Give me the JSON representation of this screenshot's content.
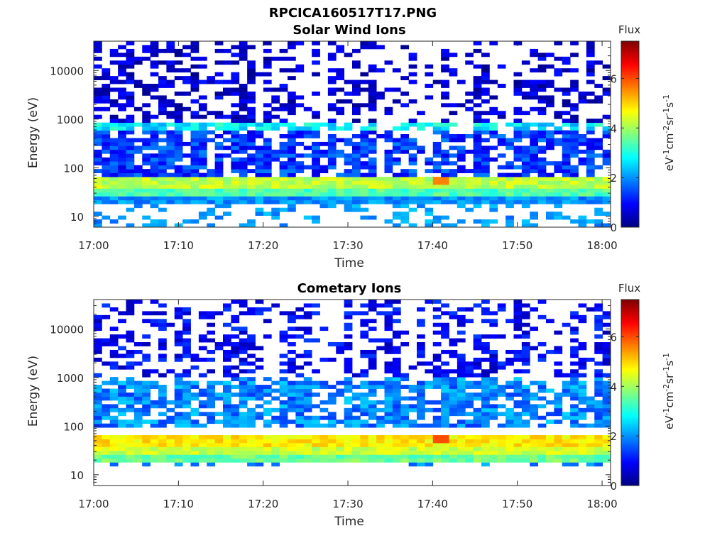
{
  "figure": {
    "title": "RPCICA160517T17.PNG"
  },
  "chart_data": [
    {
      "type": "heatmap",
      "title": "Solar Wind Ions",
      "xlabel": "Time",
      "ylabel": "Energy (eV)",
      "x_ticks": [
        "17:00",
        "17:10",
        "17:20",
        "17:30",
        "17:40",
        "17:50",
        "18:00"
      ],
      "xlim": [
        "17:00",
        "18:01"
      ],
      "y_scale": "log",
      "y_ticks": [
        "10",
        "100",
        "1000",
        "10000"
      ],
      "ylim": [
        6,
        40000
      ],
      "colorbar": {
        "label": "Flux",
        "units": "eV-1cm-2sr-1s-1",
        "ticks": [
          "0",
          "2",
          "4",
          "6"
        ],
        "range": [
          0,
          7.5
        ],
        "colormap": "jet"
      },
      "bands": [
        {
          "e_lo": 40,
          "e_hi": 65,
          "flux": 4.2
        },
        {
          "e_lo": 25,
          "e_hi": 40,
          "flux": 3.4
        },
        {
          "e_lo": 18,
          "e_hi": 25,
          "flux": 2.0
        },
        {
          "e_lo": 6,
          "e_hi": 18,
          "flux": 1.9
        },
        {
          "e_lo": 600,
          "e_hi": 900,
          "flux": 2.6
        },
        {
          "e_lo": 70,
          "e_hi": 600,
          "flux": 1.2
        },
        {
          "e_lo": 900,
          "e_hi": 40000,
          "flux": 0.4
        }
      ],
      "peak": {
        "time": "17:41",
        "energy": 55,
        "flux": 5.6
      }
    },
    {
      "type": "heatmap",
      "title": "Cometary Ions",
      "xlabel": "Time",
      "ylabel": "Energy (eV)",
      "x_ticks": [
        "17:00",
        "17:10",
        "17:20",
        "17:30",
        "17:40",
        "17:50",
        "18:00"
      ],
      "xlim": [
        "17:00",
        "18:01"
      ],
      "y_scale": "log",
      "y_ticks": [
        "10",
        "100",
        "1000",
        "10000"
      ],
      "ylim": [
        6,
        40000
      ],
      "colorbar": {
        "label": "Flux",
        "units": "eV-1cm-2sr-1s-1",
        "ticks": [
          "0",
          "2",
          "4",
          "6"
        ],
        "range": [
          0,
          7.5
        ],
        "colormap": "jet"
      },
      "bands": [
        {
          "e_lo": 60,
          "e_hi": 70,
          "flux": 2.8
        },
        {
          "e_lo": 40,
          "e_hi": 60,
          "flux": 4.8
        },
        {
          "e_lo": 25,
          "e_hi": 40,
          "flux": 4.3
        },
        {
          "e_lo": 18,
          "e_hi": 25,
          "flux": 3.6
        },
        {
          "e_lo": 14,
          "e_hi": 18,
          "flux": 1.8
        },
        {
          "e_lo": 100,
          "e_hi": 1000,
          "flux": 1.8
        },
        {
          "e_lo": 1000,
          "e_hi": 40000,
          "flux": 0.7
        }
      ],
      "peak": {
        "time": "17:41",
        "energy": 52,
        "flux": 6.0
      }
    }
  ]
}
